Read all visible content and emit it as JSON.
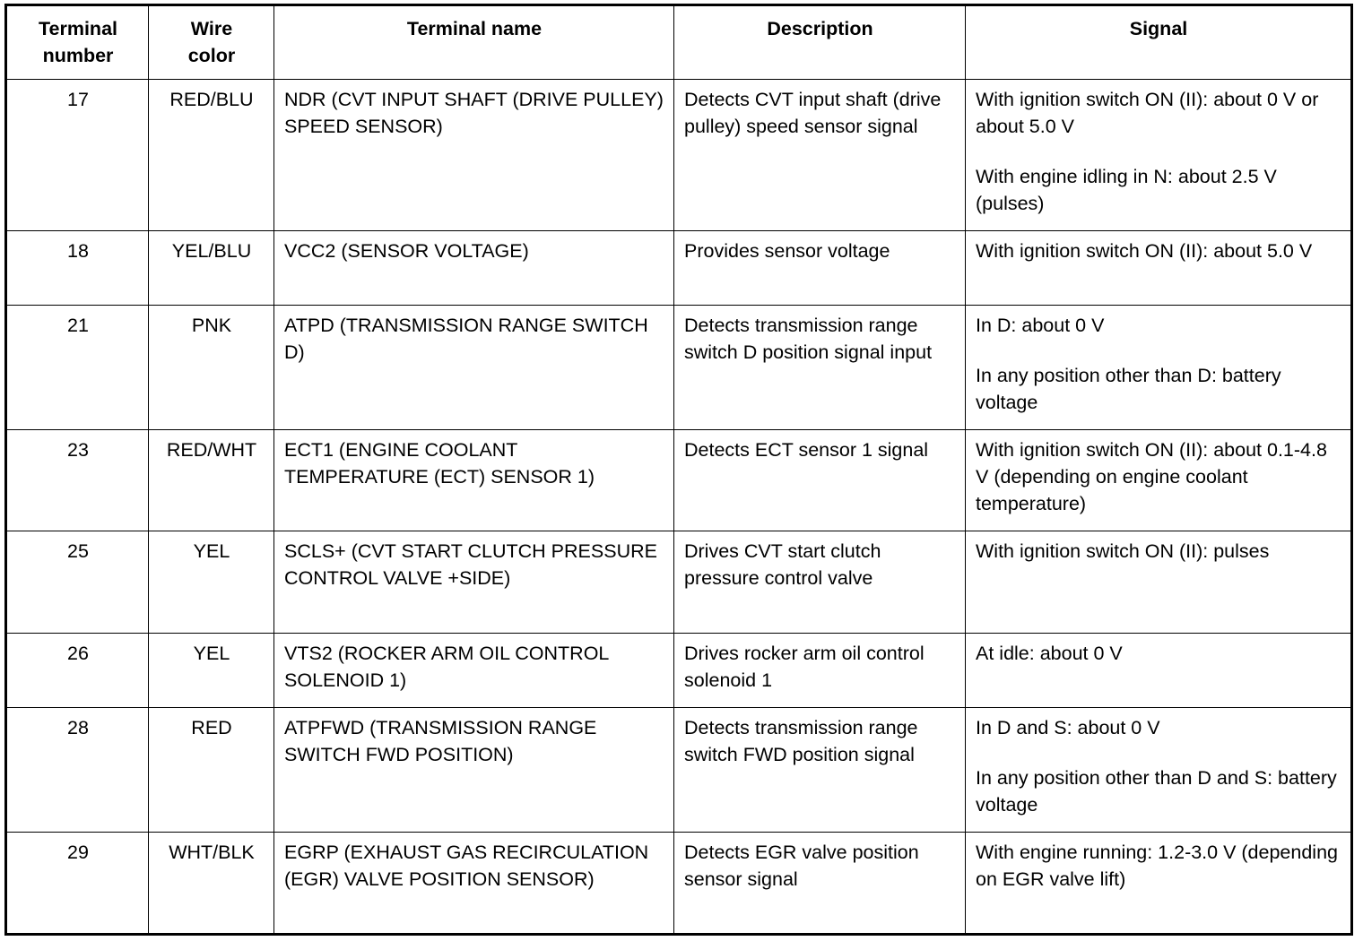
{
  "headers": [
    "Terminal\nnumber",
    "Wire\ncolor",
    "Terminal name",
    "Description",
    "Signal"
  ],
  "rows": [
    {
      "number": "17",
      "wire": "RED/BLU",
      "name": "NDR (CVT INPUT SHAFT (DRIVE PULLEY) SPEED SENSOR)",
      "description": "Detects CVT input shaft (drive pulley) speed sensor signal",
      "signal": [
        "With ignition switch ON (II): about 0 V or about 5.0 V",
        "With engine idling in N: about 2.5 V (pulses)"
      ]
    },
    {
      "number": "18",
      "wire": "YEL/BLU",
      "name": "VCC2 (SENSOR VOLTAGE)",
      "description": "Provides sensor voltage",
      "signal": [
        "With ignition switch ON (II): about 5.0 V"
      ]
    },
    {
      "number": "21",
      "wire": "PNK",
      "name": "ATPD (TRANSMISSION RANGE SWITCH D)",
      "description": "Detects transmission range switch D position signal input",
      "signal": [
        "In D: about 0 V",
        "In any position other than D: battery voltage"
      ]
    },
    {
      "number": "23",
      "wire": "RED/WHT",
      "name": "ECT1 (ENGINE COOLANT TEMPERATURE (ECT) SENSOR 1)",
      "description": "Detects ECT sensor 1 signal",
      "signal": [
        "With ignition switch ON (II): about 0.1-4.8 V (depending on engine coolant temperature)"
      ]
    },
    {
      "number": "25",
      "wire": "YEL",
      "name": "SCLS+ (CVT START CLUTCH PRESSURE CONTROL VALVE +SIDE)",
      "description": "Drives CVT start clutch pressure control valve",
      "signal": [
        "With ignition switch ON (II): pulses"
      ]
    },
    {
      "number": "26",
      "wire": "YEL",
      "name": "VTS2 (ROCKER ARM OIL CONTROL SOLENOID 1)",
      "description": "Drives rocker arm oil control solenoid 1",
      "signal": [
        "At idle: about 0 V"
      ]
    },
    {
      "number": "28",
      "wire": "RED",
      "name": "ATPFWD (TRANSMISSION RANGE SWITCH FWD POSITION)",
      "description": "Detects transmission range switch FWD position signal",
      "signal": [
        "In D and S: about 0 V",
        "In any position other than D and S: battery voltage"
      ]
    },
    {
      "number": "29",
      "wire": "WHT/BLK",
      "name": "EGRP (EXHAUST GAS RECIRCULATION (EGR) VALVE POSITION SENSOR)",
      "description": "Detects EGR valve position sensor signal",
      "signal": [
        "With engine running: 1.2-3.0 V (depending on EGR valve lift)"
      ]
    }
  ]
}
